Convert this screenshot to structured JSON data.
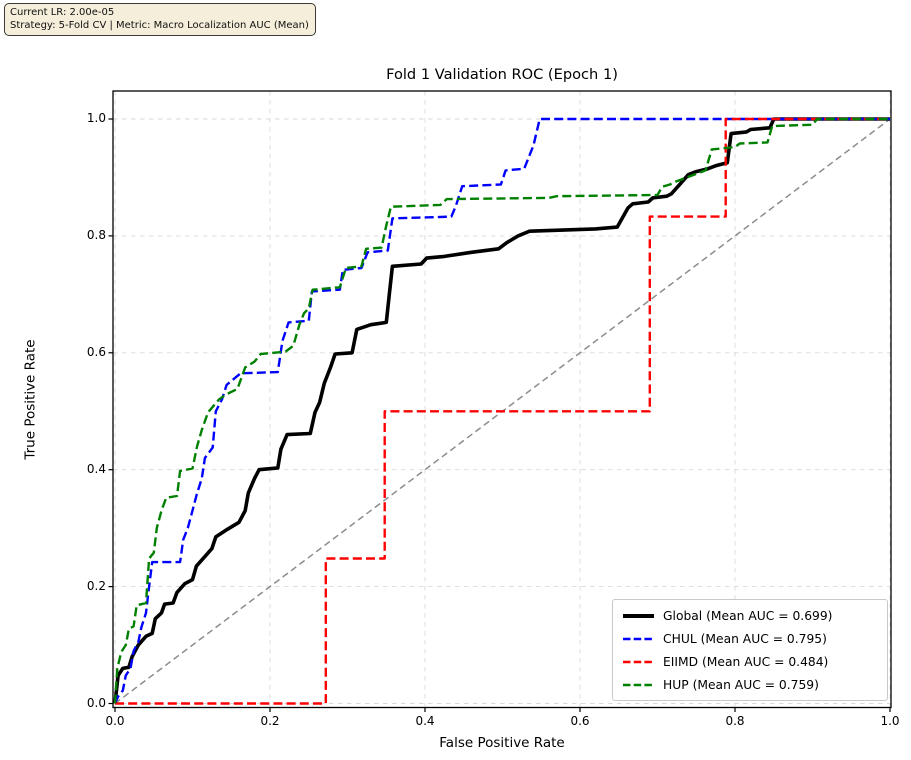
{
  "info_box": {
    "line1": "Current LR: 2.00e-05",
    "line2": "Strategy: 5-Fold CV | Metric: Macro Localization AUC (Mean)"
  },
  "chart_data": {
    "type": "line",
    "subtype": "roc-curves",
    "title": "Fold 1 Validation ROC (Epoch 1)",
    "xlabel": "False Positive Rate",
    "ylabel": "True Positive Rate",
    "xlim": [
      0,
      1
    ],
    "ylim": [
      0,
      1
    ],
    "grid": true,
    "legend_position": "lower right",
    "xticks": [
      {
        "value": 0.0,
        "label": "0.0"
      },
      {
        "value": 0.2,
        "label": "0.2"
      },
      {
        "value": 0.4,
        "label": "0.4"
      },
      {
        "value": 0.6,
        "label": "0.6"
      },
      {
        "value": 0.8,
        "label": "0.8"
      },
      {
        "value": 1.0,
        "label": "1.0"
      }
    ],
    "yticks": [
      {
        "value": 0.0,
        "label": "0.0"
      },
      {
        "value": 0.2,
        "label": "0.2"
      },
      {
        "value": 0.4,
        "label": "0.4"
      },
      {
        "value": 0.6,
        "label": "0.6"
      },
      {
        "value": 0.8,
        "label": "0.8"
      },
      {
        "value": 1.0,
        "label": "1.0"
      }
    ],
    "reference_line": {
      "name": "chance-diagonal",
      "color": "#8c8c8c",
      "style": "dashed",
      "width": 1.5,
      "points": [
        [
          0,
          0
        ],
        [
          1,
          1
        ]
      ]
    },
    "series": [
      {
        "name": "Global (Mean AUC = 0.699)",
        "auc": 0.699,
        "color": "#000000",
        "style": "solid",
        "width": 3.6,
        "points": [
          [
            0,
            0
          ],
          [
            0.004,
            0.048
          ],
          [
            0.01,
            0.06
          ],
          [
            0.018,
            0.062
          ],
          [
            0.022,
            0.08
          ],
          [
            0.03,
            0.1
          ],
          [
            0.04,
            0.115
          ],
          [
            0.048,
            0.12
          ],
          [
            0.052,
            0.145
          ],
          [
            0.06,
            0.155
          ],
          [
            0.064,
            0.17
          ],
          [
            0.075,
            0.172
          ],
          [
            0.08,
            0.19
          ],
          [
            0.09,
            0.205
          ],
          [
            0.1,
            0.212
          ],
          [
            0.105,
            0.235
          ],
          [
            0.115,
            0.25
          ],
          [
            0.125,
            0.265
          ],
          [
            0.13,
            0.285
          ],
          [
            0.145,
            0.298
          ],
          [
            0.16,
            0.31
          ],
          [
            0.168,
            0.33
          ],
          [
            0.172,
            0.36
          ],
          [
            0.18,
            0.385
          ],
          [
            0.186,
            0.4
          ],
          [
            0.21,
            0.403
          ],
          [
            0.214,
            0.435
          ],
          [
            0.222,
            0.46
          ],
          [
            0.252,
            0.462
          ],
          [
            0.258,
            0.498
          ],
          [
            0.264,
            0.515
          ],
          [
            0.27,
            0.548
          ],
          [
            0.278,
            0.575
          ],
          [
            0.284,
            0.598
          ],
          [
            0.306,
            0.6
          ],
          [
            0.312,
            0.64
          ],
          [
            0.33,
            0.648
          ],
          [
            0.35,
            0.652
          ],
          [
            0.354,
            0.7
          ],
          [
            0.358,
            0.748
          ],
          [
            0.395,
            0.752
          ],
          [
            0.402,
            0.762
          ],
          [
            0.425,
            0.765
          ],
          [
            0.46,
            0.772
          ],
          [
            0.495,
            0.778
          ],
          [
            0.505,
            0.788
          ],
          [
            0.52,
            0.8
          ],
          [
            0.535,
            0.808
          ],
          [
            0.62,
            0.812
          ],
          [
            0.648,
            0.815
          ],
          [
            0.662,
            0.848
          ],
          [
            0.668,
            0.855
          ],
          [
            0.688,
            0.858
          ],
          [
            0.694,
            0.865
          ],
          [
            0.712,
            0.868
          ],
          [
            0.718,
            0.872
          ],
          [
            0.74,
            0.905
          ],
          [
            0.75,
            0.91
          ],
          [
            0.765,
            0.915
          ],
          [
            0.775,
            0.92
          ],
          [
            0.79,
            0.925
          ],
          [
            0.795,
            0.975
          ],
          [
            0.815,
            0.978
          ],
          [
            0.82,
            0.982
          ],
          [
            0.845,
            0.985
          ],
          [
            0.85,
            1.0
          ],
          [
            1,
            1
          ]
        ]
      },
      {
        "name": "CHUL (Mean AUC = 0.795)",
        "auc": 0.795,
        "color": "#0000ff",
        "style": "dashed",
        "width": 2.4,
        "points": [
          [
            0,
            0
          ],
          [
            0.004,
            0.012
          ],
          [
            0.01,
            0.022
          ],
          [
            0.014,
            0.048
          ],
          [
            0.02,
            0.06
          ],
          [
            0.024,
            0.09
          ],
          [
            0.03,
            0.105
          ],
          [
            0.034,
            0.13
          ],
          [
            0.04,
            0.155
          ],
          [
            0.044,
            0.2
          ],
          [
            0.048,
            0.242
          ],
          [
            0.084,
            0.242
          ],
          [
            0.088,
            0.28
          ],
          [
            0.094,
            0.3
          ],
          [
            0.1,
            0.33
          ],
          [
            0.106,
            0.36
          ],
          [
            0.112,
            0.385
          ],
          [
            0.116,
            0.42
          ],
          [
            0.126,
            0.438
          ],
          [
            0.13,
            0.5
          ],
          [
            0.138,
            0.52
          ],
          [
            0.144,
            0.545
          ],
          [
            0.162,
            0.565
          ],
          [
            0.21,
            0.567
          ],
          [
            0.216,
            0.62
          ],
          [
            0.224,
            0.652
          ],
          [
            0.25,
            0.655
          ],
          [
            0.254,
            0.705
          ],
          [
            0.29,
            0.708
          ],
          [
            0.294,
            0.742
          ],
          [
            0.318,
            0.745
          ],
          [
            0.326,
            0.772
          ],
          [
            0.352,
            0.775
          ],
          [
            0.358,
            0.83
          ],
          [
            0.434,
            0.833
          ],
          [
            0.44,
            0.852
          ],
          [
            0.448,
            0.885
          ],
          [
            0.498,
            0.888
          ],
          [
            0.504,
            0.912
          ],
          [
            0.528,
            0.915
          ],
          [
            0.54,
            0.955
          ],
          [
            0.548,
            1.0
          ],
          [
            1,
            1
          ]
        ]
      },
      {
        "name": "EIIMD (Mean AUC = 0.484)",
        "auc": 0.484,
        "color": "#ff0000",
        "style": "dashed",
        "width": 2.4,
        "points": [
          [
            0,
            0
          ],
          [
            0.272,
            0
          ],
          [
            0.272,
            0.248
          ],
          [
            0.348,
            0.248
          ],
          [
            0.348,
            0.5
          ],
          [
            0.69,
            0.5
          ],
          [
            0.69,
            0.833
          ],
          [
            0.788,
            0.833
          ],
          [
            0.788,
            1.0
          ],
          [
            1,
            1
          ]
        ]
      },
      {
        "name": "HUP (Mean AUC = 0.759)",
        "auc": 0.759,
        "color": "#008000",
        "style": "dashed",
        "width": 2.4,
        "points": [
          [
            0,
            0
          ],
          [
            0.003,
            0.06
          ],
          [
            0.008,
            0.088
          ],
          [
            0.014,
            0.1
          ],
          [
            0.018,
            0.128
          ],
          [
            0.024,
            0.132
          ],
          [
            0.028,
            0.168
          ],
          [
            0.04,
            0.172
          ],
          [
            0.044,
            0.248
          ],
          [
            0.05,
            0.258
          ],
          [
            0.054,
            0.3
          ],
          [
            0.06,
            0.33
          ],
          [
            0.066,
            0.352
          ],
          [
            0.08,
            0.355
          ],
          [
            0.084,
            0.398
          ],
          [
            0.1,
            0.402
          ],
          [
            0.106,
            0.44
          ],
          [
            0.112,
            0.468
          ],
          [
            0.12,
            0.498
          ],
          [
            0.134,
            0.52
          ],
          [
            0.142,
            0.528
          ],
          [
            0.158,
            0.538
          ],
          [
            0.168,
            0.575
          ],
          [
            0.18,
            0.585
          ],
          [
            0.188,
            0.598
          ],
          [
            0.22,
            0.602
          ],
          [
            0.23,
            0.612
          ],
          [
            0.238,
            0.648
          ],
          [
            0.244,
            0.668
          ],
          [
            0.25,
            0.676
          ],
          [
            0.255,
            0.708
          ],
          [
            0.29,
            0.712
          ],
          [
            0.298,
            0.745
          ],
          [
            0.318,
            0.748
          ],
          [
            0.324,
            0.778
          ],
          [
            0.344,
            0.78
          ],
          [
            0.35,
            0.818
          ],
          [
            0.356,
            0.85
          ],
          [
            0.42,
            0.853
          ],
          [
            0.428,
            0.863
          ],
          [
            0.56,
            0.865
          ],
          [
            0.57,
            0.868
          ],
          [
            0.7,
            0.87
          ],
          [
            0.706,
            0.884
          ],
          [
            0.716,
            0.888
          ],
          [
            0.722,
            0.892
          ],
          [
            0.762,
            0.912
          ],
          [
            0.77,
            0.948
          ],
          [
            0.8,
            0.952
          ],
          [
            0.806,
            0.958
          ],
          [
            0.842,
            0.96
          ],
          [
            0.848,
            0.988
          ],
          [
            0.9,
            0.99
          ],
          [
            0.906,
            1.0
          ],
          [
            1,
            1
          ]
        ]
      }
    ]
  }
}
